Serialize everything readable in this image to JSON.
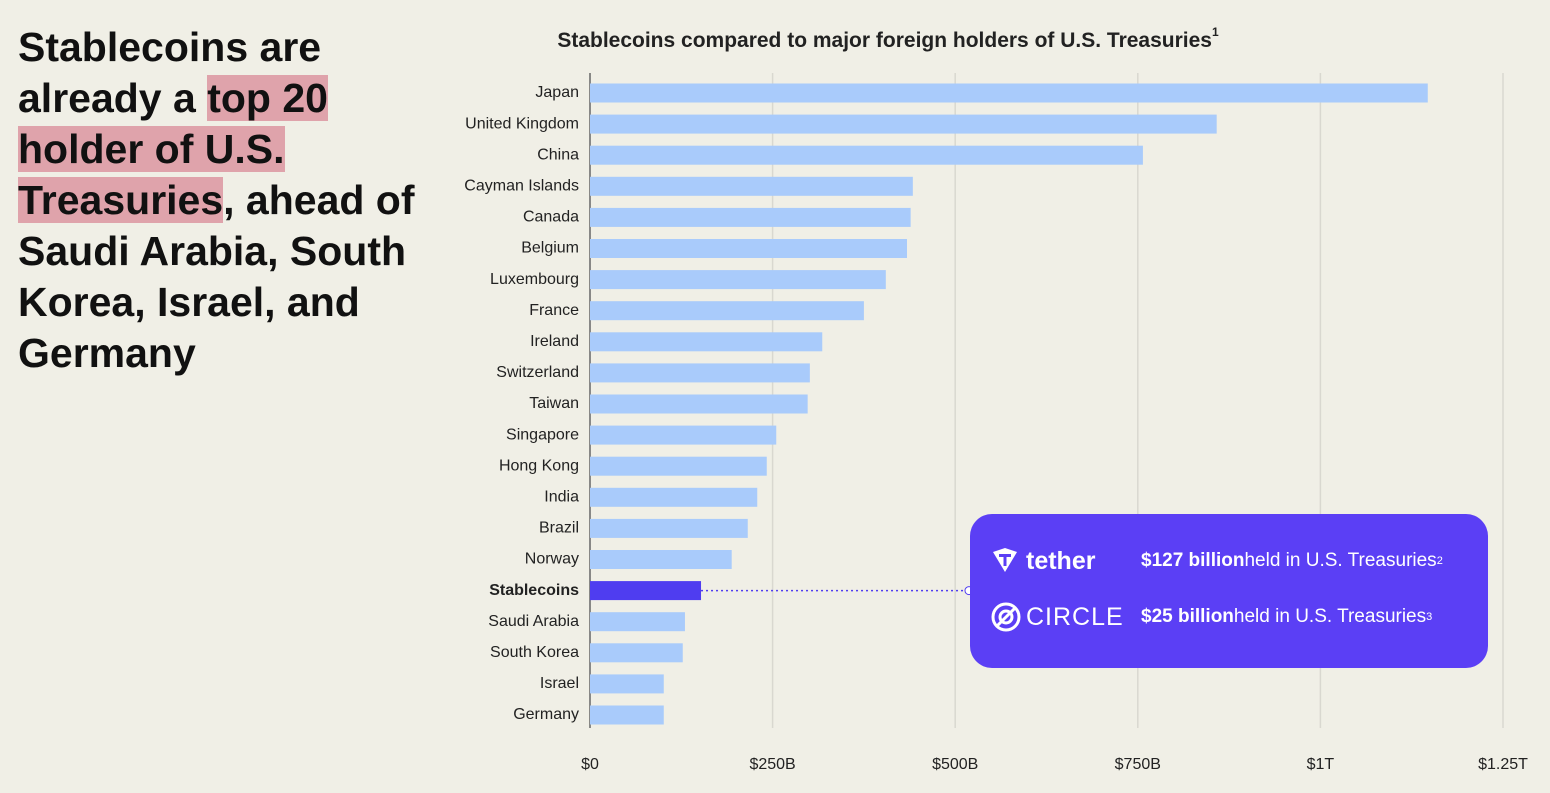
{
  "headline": [
    "Stablecoins are already a ",
    "top 20 holder of U.S. Treasuries",
    ", ahead of Saudi Arabia, South Korea, Israel, and Germany"
  ],
  "chart_data": {
    "type": "hbar",
    "title": "Stablecoins compared to major foreign holders of U.S. Treasuries",
    "title_note": "1",
    "categories": [
      "Japan",
      "United Kingdom",
      "China",
      "Cayman Islands",
      "Canada",
      "Belgium",
      "Luxembourg",
      "France",
      "Ireland",
      "Switzerland",
      "Taiwan",
      "Singapore",
      "Hong Kong",
      "India",
      "Brazil",
      "Norway",
      "Stablecoins",
      "Saudi Arabia",
      "South Korea",
      "Israel",
      "Germany"
    ],
    "values": [
      1147,
      858,
      757,
      442,
      439,
      434,
      405,
      375,
      318,
      301,
      298,
      255,
      242,
      229,
      216,
      194,
      152,
      130,
      127,
      101,
      101
    ],
    "colors": [
      "#a9cbfb",
      "#a9cbfb",
      "#a9cbfb",
      "#a9cbfb",
      "#a9cbfb",
      "#a9cbfb",
      "#a9cbfb",
      "#a9cbfb",
      "#a9cbfb",
      "#a9cbfb",
      "#a9cbfb",
      "#a9cbfb",
      "#a9cbfb",
      "#a9cbfb",
      "#a9cbfb",
      "#a9cbfb",
      "#4f3df0",
      "#a9cbfb",
      "#a9cbfb",
      "#a9cbfb",
      "#a9cbfb"
    ],
    "xlim": [
      0,
      1250
    ],
    "xticks": [
      {
        "value": 0,
        "label": "$0"
      },
      {
        "value": 250,
        "label": "$250B"
      },
      {
        "value": 500,
        "label": "$500B"
      },
      {
        "value": 750,
        "label": "$750B"
      },
      {
        "value": 1000,
        "label": "$1T"
      },
      {
        "value": 1250,
        "label": "$1.25T"
      }
    ],
    "grid": true
  },
  "annotations": [
    {
      "brand": "tether",
      "amount": "$127 billion",
      "text": " held in U.S. Treasuries",
      "note": "2"
    },
    {
      "brand": "CIRCLE",
      "amount": "$25 billion",
      "text": " held in U.S. Treasuries",
      "note": "3"
    }
  ]
}
